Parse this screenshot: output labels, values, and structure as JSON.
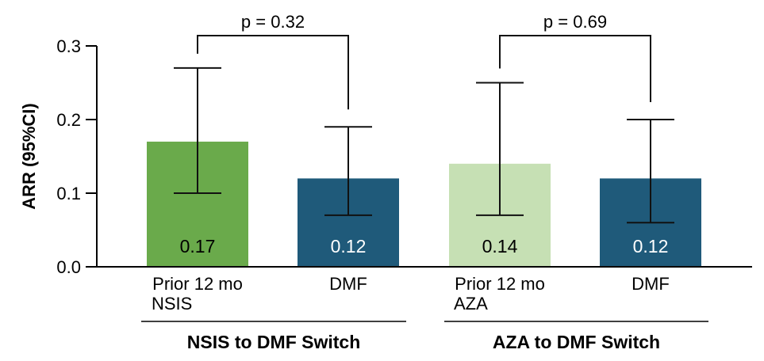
{
  "chart_data": {
    "type": "bar",
    "ylabel": "ARR (95%CI)",
    "ylim": [
      0,
      0.3
    ],
    "yticks": [
      "0.0",
      "0.1",
      "0.2",
      "0.3"
    ],
    "yticks_values": [
      0,
      0.1,
      0.2,
      0.3
    ],
    "bars": [
      {
        "label": [
          "Prior 12 mo",
          "NSIS"
        ],
        "value": 0.17,
        "value_label": "0.17",
        "ci_low": 0.1,
        "ci_high": 0.27,
        "color": "#6aaa4b",
        "text_color": "#000000"
      },
      {
        "label": [
          "DMF"
        ],
        "value": 0.12,
        "value_label": "0.12",
        "ci_low": 0.07,
        "ci_high": 0.19,
        "color": "#1f5a7a",
        "text_color": "#ffffff"
      },
      {
        "label": [
          "Prior 12 mo",
          "AZA"
        ],
        "value": 0.14,
        "value_label": "0.14",
        "ci_low": 0.07,
        "ci_high": 0.25,
        "color": "#c6e0b4",
        "text_color": "#000000"
      },
      {
        "label": [
          "DMF"
        ],
        "value": 0.12,
        "value_label": "0.12",
        "ci_low": 0.06,
        "ci_high": 0.2,
        "color": "#1f5a7a",
        "text_color": "#ffffff"
      }
    ],
    "groups": [
      {
        "label": "NSIS to DMF Switch",
        "bars": [
          0,
          1
        ]
      },
      {
        "label": "AZA to DMF Switch",
        "bars": [
          2,
          3
        ]
      }
    ],
    "comparisons": [
      {
        "between": [
          0,
          1
        ],
        "label": "p = 0.32"
      },
      {
        "between": [
          2,
          3
        ],
        "label": "p = 0.69"
      }
    ]
  }
}
